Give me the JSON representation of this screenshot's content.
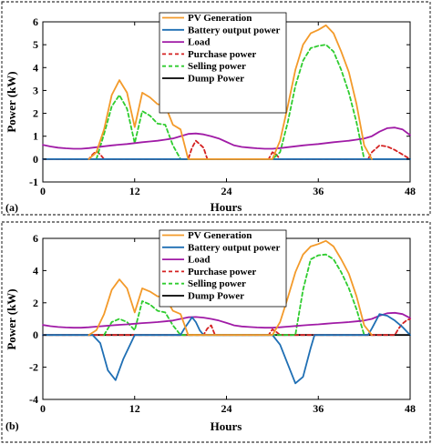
{
  "chart_data": [
    {
      "type": "line",
      "panel_label": "(a)",
      "xlabel": "Hours",
      "ylabel": "Power (kW)",
      "xlim": [
        0,
        48
      ],
      "ylim": [
        -1,
        6
      ],
      "xticks": [
        0,
        12,
        24,
        36,
        48
      ],
      "yticks": [
        -1,
        0,
        1,
        2,
        3,
        4,
        5,
        6
      ],
      "grid": false,
      "legend_position": "top-center",
      "series": [
        {
          "name": "PV Generation",
          "color": "#F39A2A",
          "dash": "solid",
          "x": [
            6,
            7,
            8,
            9,
            10,
            11,
            12,
            13,
            14,
            15,
            16,
            17,
            18,
            19,
            30,
            31,
            32,
            33,
            34,
            35,
            36,
            37,
            38,
            39,
            40,
            41,
            42,
            43
          ],
          "y": [
            0,
            0.3,
            1.3,
            2.8,
            3.45,
            2.9,
            1.4,
            2.9,
            2.7,
            2.4,
            2.35,
            1.5,
            1.3,
            0,
            0,
            0.8,
            2.3,
            3.9,
            5.0,
            5.5,
            5.65,
            5.85,
            5.5,
            4.7,
            3.8,
            2.4,
            0.6,
            0
          ]
        },
        {
          "name": "Battery output power",
          "color": "#1F6FB4",
          "dash": "solid",
          "x": [
            0,
            48
          ],
          "y": [
            0,
            0
          ]
        },
        {
          "name": "Load",
          "color": "#A01BA6",
          "dash": "solid",
          "x": [
            0,
            1,
            2,
            3,
            4,
            5,
            6,
            7,
            8,
            9,
            10,
            11,
            12,
            13,
            14,
            15,
            16,
            17,
            18,
            19,
            20,
            21,
            22,
            23,
            24,
            25,
            26,
            27,
            28,
            29,
            30,
            31,
            32,
            33,
            34,
            35,
            36,
            37,
            38,
            39,
            40,
            41,
            42,
            43,
            44,
            45,
            46,
            47,
            48
          ],
          "y": [
            0.62,
            0.55,
            0.5,
            0.47,
            0.45,
            0.45,
            0.48,
            0.52,
            0.56,
            0.6,
            0.63,
            0.66,
            0.7,
            0.74,
            0.77,
            0.8,
            0.85,
            0.9,
            1.0,
            1.1,
            1.12,
            1.08,
            1.0,
            0.9,
            0.75,
            0.6,
            0.53,
            0.5,
            0.47,
            0.45,
            0.45,
            0.48,
            0.52,
            0.56,
            0.6,
            0.63,
            0.66,
            0.7,
            0.74,
            0.77,
            0.8,
            0.85,
            0.9,
            1.0,
            1.2,
            1.35,
            1.38,
            1.3,
            1.05
          ]
        },
        {
          "name": "Purchase power",
          "color": "#D42020",
          "dash": "dashed",
          "x": [
            0,
            6,
            6.5,
            7,
            7.5,
            8,
            19,
            19.5,
            20,
            21,
            21.5,
            29.5,
            30,
            30.5,
            31,
            42.5,
            43,
            44,
            45,
            46,
            47,
            48
          ],
          "y": [
            0,
            0,
            0.2,
            0.35,
            0.2,
            0,
            0,
            0.5,
            0.8,
            0.5,
            0,
            0,
            0.3,
            0.2,
            0,
            0,
            0.3,
            0.6,
            0.55,
            0.4,
            0.2,
            0
          ]
        },
        {
          "name": "Selling power",
          "color": "#2ECC2E",
          "dash": "dashed",
          "x": [
            7,
            8,
            9,
            10,
            11,
            12,
            13,
            14,
            15,
            16,
            17,
            18,
            30,
            31,
            32,
            33,
            34,
            35,
            36,
            37,
            38,
            39,
            40,
            41,
            42
          ],
          "y": [
            0,
            1.1,
            2.3,
            2.8,
            2.2,
            0.7,
            2.1,
            1.9,
            1.55,
            1.5,
            0.6,
            0,
            0,
            0.3,
            1.6,
            3.2,
            4.3,
            4.85,
            4.95,
            5.0,
            4.7,
            3.9,
            2.9,
            1.6,
            0
          ]
        },
        {
          "name": "Dump Power",
          "color": "#000000",
          "dash": "solid",
          "x": [
            0,
            48
          ],
          "y": [
            0,
            0
          ]
        }
      ]
    },
    {
      "type": "line",
      "panel_label": "(b)",
      "xlabel": "Hours",
      "ylabel": "Power (kW)",
      "xlim": [
        0,
        48
      ],
      "ylim": [
        -4,
        6
      ],
      "xticks": [
        0,
        12,
        24,
        36,
        48
      ],
      "yticks": [
        -4,
        -2,
        0,
        2,
        4,
        6
      ],
      "grid": false,
      "legend_position": "top-center",
      "series": [
        {
          "name": "PV Generation",
          "color": "#F39A2A",
          "dash": "solid",
          "x": [
            6,
            7,
            8,
            9,
            10,
            11,
            12,
            13,
            14,
            15,
            16,
            17,
            18,
            19,
            30,
            31,
            32,
            33,
            34,
            35,
            36,
            37,
            38,
            39,
            40,
            41,
            42,
            43
          ],
          "y": [
            0,
            0.3,
            1.3,
            2.8,
            3.45,
            2.9,
            1.4,
            2.9,
            2.7,
            2.4,
            2.35,
            1.5,
            1.3,
            0,
            0,
            0.8,
            2.3,
            3.9,
            5.0,
            5.5,
            5.65,
            5.85,
            5.5,
            4.7,
            3.8,
            2.4,
            0.6,
            0
          ]
        },
        {
          "name": "Battery output power",
          "color": "#1F6FB4",
          "dash": "solid",
          "x": [
            0,
            6.5,
            7.5,
            8.5,
            9.5,
            10.5,
            12,
            12.5,
            18,
            18.5,
            19.5,
            20,
            20.5,
            21,
            29.5,
            30,
            31,
            32,
            33,
            34,
            35,
            35.5,
            42.5,
            43,
            44,
            45,
            46,
            47,
            48
          ],
          "y": [
            0,
            0,
            -0.5,
            -2.2,
            -2.8,
            -1.5,
            0,
            0,
            0,
            0.4,
            1.1,
            0.8,
            0.3,
            0,
            0,
            0,
            -0.6,
            -1.8,
            -3.0,
            -2.6,
            -0.8,
            0,
            0,
            0.4,
            1.3,
            1.2,
            0.9,
            0.5,
            0
          ]
        },
        {
          "name": "Load",
          "color": "#A01BA6",
          "dash": "solid",
          "x": [
            0,
            1,
            2,
            3,
            4,
            5,
            6,
            7,
            8,
            9,
            10,
            11,
            12,
            13,
            14,
            15,
            16,
            17,
            18,
            19,
            20,
            21,
            22,
            23,
            24,
            25,
            26,
            27,
            28,
            29,
            30,
            31,
            32,
            33,
            34,
            35,
            36,
            37,
            38,
            39,
            40,
            41,
            42,
            43,
            44,
            45,
            46,
            47,
            48
          ],
          "y": [
            0.62,
            0.55,
            0.5,
            0.47,
            0.45,
            0.45,
            0.48,
            0.52,
            0.56,
            0.6,
            0.63,
            0.66,
            0.7,
            0.74,
            0.77,
            0.8,
            0.85,
            0.9,
            1.0,
            1.1,
            1.12,
            1.08,
            1.0,
            0.9,
            0.75,
            0.6,
            0.53,
            0.5,
            0.47,
            0.45,
            0.45,
            0.48,
            0.52,
            0.56,
            0.6,
            0.63,
            0.66,
            0.7,
            0.74,
            0.77,
            0.8,
            0.85,
            0.9,
            1.0,
            1.2,
            1.35,
            1.38,
            1.3,
            1.05
          ]
        },
        {
          "name": "Purchase power",
          "color": "#D42020",
          "dash": "dashed",
          "x": [
            0,
            21,
            21.5,
            22,
            22.5,
            29.5,
            30,
            30.5,
            31,
            46,
            46.5,
            47,
            47.5,
            48
          ],
          "y": [
            0,
            0,
            0.4,
            0.6,
            0,
            0,
            0.35,
            0.2,
            0,
            0,
            0.4,
            0.7,
            0.9,
            1.0
          ]
        },
        {
          "name": "Selling power",
          "color": "#2ECC2E",
          "dash": "dashed",
          "x": [
            8,
            9,
            10,
            11,
            12,
            13,
            14,
            15,
            16,
            17,
            18,
            33,
            34,
            35,
            36,
            37,
            38,
            39,
            40,
            41,
            42
          ],
          "y": [
            0,
            0.8,
            1.0,
            0.8,
            0.3,
            2.1,
            1.9,
            1.5,
            1.4,
            0.6,
            0,
            0,
            2.8,
            4.7,
            4.95,
            5.0,
            4.7,
            3.9,
            2.9,
            1.6,
            0
          ]
        },
        {
          "name": "Dump Power",
          "color": "#000000",
          "dash": "solid",
          "x": [
            0,
            48
          ],
          "y": [
            0,
            0
          ]
        }
      ]
    }
  ]
}
